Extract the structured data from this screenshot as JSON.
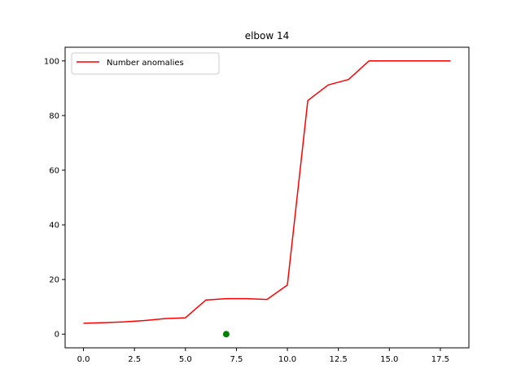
{
  "chart_data": {
    "type": "line",
    "title": "elbow 14",
    "xlabel": "",
    "ylabel": "",
    "xlim": [
      -0.9,
      18.9
    ],
    "ylim": [
      -5,
      105
    ],
    "xticks": [
      0.0,
      2.5,
      5.0,
      7.5,
      10.0,
      12.5,
      15.0,
      17.5
    ],
    "xtick_labels": [
      "0.0",
      "2.5",
      "5.0",
      "7.5",
      "10.0",
      "12.5",
      "15.0",
      "17.5"
    ],
    "yticks": [
      0,
      20,
      40,
      60,
      80,
      100
    ],
    "ytick_labels": [
      "0",
      "20",
      "40",
      "60",
      "80",
      "100"
    ],
    "grid": false,
    "legend": {
      "placement": "top-left",
      "entries": [
        "Number anomalies"
      ]
    },
    "series": [
      {
        "name": "Number anomalies",
        "kind": "line",
        "color": "#ff0000",
        "x": [
          0,
          1,
          2,
          3,
          4,
          5,
          6,
          7,
          8,
          9,
          10,
          11,
          12,
          13,
          14,
          15,
          16,
          17,
          18
        ],
        "y": [
          4.0,
          4.2,
          4.5,
          5.0,
          5.7,
          6.0,
          12.5,
          13.0,
          13.0,
          12.7,
          18.0,
          85.5,
          91.2,
          93.2,
          100,
          100,
          100,
          100,
          100
        ]
      },
      {
        "kind": "point",
        "color": "#008000",
        "x": [
          7
        ],
        "y": [
          0
        ]
      }
    ]
  }
}
